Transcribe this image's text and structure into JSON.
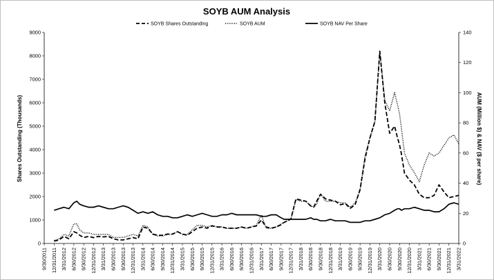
{
  "chart_data": {
    "type": "line",
    "title": "SOYB AUM Analysis",
    "ylabel": "Shares Outstanding (Thousands)",
    "y2label": "AUM (Million $) & NAV ($ per share)",
    "ylim": [
      0,
      9000
    ],
    "y2lim": [
      0,
      140
    ],
    "yticks": [
      0,
      1000,
      2000,
      3000,
      4000,
      5000,
      6000,
      7000,
      8000,
      9000
    ],
    "y2ticks": [
      0,
      20,
      40,
      60,
      80,
      100,
      120,
      140
    ],
    "xlim": [
      0,
      42
    ],
    "xtick_labels": [
      "9/30/2011",
      "12/31/2011",
      "3/31/2012",
      "6/30/2012",
      "9/30/2012",
      "12/31/2012",
      "3/31/2013",
      "6/30/2013",
      "9/30/2013",
      "12/31/2013",
      "3/31/2014",
      "6/30/2014",
      "9/30/2014",
      "12/31/2014",
      "3/31/2015",
      "6/30/2015",
      "9/30/2015",
      "12/31/2015",
      "3/31/2016",
      "6/30/2016",
      "9/30/2016",
      "12/31/2016",
      "3/31/2017",
      "6/30/2017",
      "9/30/2017",
      "12/31/2017",
      "3/31/2018",
      "6/30/2018",
      "9/30/2018",
      "12/31/2018",
      "3/31/2019",
      "6/30/2019",
      "9/30/2019",
      "12/31/2019",
      "3/31/2020",
      "6/30/2020",
      "9/30/2020",
      "12/31/2020",
      "3/31/2021",
      "6/30/2021",
      "9/30/2021",
      "12/31/2021",
      "3/31/2022"
    ],
    "legend_position": "top",
    "grid": false,
    "series": [
      {
        "name": "SOYB Shares Outstanding",
        "axis": "left",
        "style": "dashed",
        "x": [
          1,
          1.5,
          2,
          2.5,
          3,
          3.3,
          3.6,
          4,
          4.5,
          5,
          5.5,
          6,
          6.5,
          7,
          7.5,
          8,
          8.5,
          9,
          9.5,
          10,
          10.5,
          11,
          11.5,
          12,
          12.5,
          13,
          13.5,
          14,
          14.5,
          15,
          15.5,
          16,
          16.5,
          17,
          17.5,
          18,
          18.5,
          19,
          19.5,
          20,
          20.5,
          21,
          21.5,
          22,
          22.5,
          23,
          23.5,
          24,
          24.3,
          24.6,
          25,
          25.5,
          26,
          26.5,
          27,
          27.3,
          27.6,
          28,
          28.5,
          29,
          29.5,
          30,
          30.5,
          31,
          31.5,
          32,
          32.5,
          33,
          33.5,
          34,
          34.5,
          35,
          35.5,
          35.8,
          36,
          36.2,
          36.5,
          37,
          37.5,
          38,
          38.5,
          39,
          39.5,
          40,
          40.5,
          41,
          41.5,
          42
        ],
        "values": [
          100,
          150,
          300,
          200,
          500,
          450,
          350,
          250,
          300,
          250,
          300,
          280,
          300,
          200,
          150,
          150,
          200,
          250,
          200,
          700,
          650,
          400,
          350,
          350,
          400,
          400,
          500,
          400,
          350,
          500,
          650,
          700,
          650,
          750,
          700,
          700,
          650,
          650,
          650,
          700,
          650,
          700,
          750,
          1000,
          700,
          650,
          700,
          800,
          900,
          950,
          1050,
          1900,
          1850,
          1800,
          1600,
          1550,
          1800,
          2100,
          1900,
          1850,
          1800,
          1650,
          1700,
          1500,
          1650,
          2300,
          3600,
          4500,
          5200,
          8200,
          6000,
          4700,
          5000,
          4500,
          4200,
          3800,
          3000,
          2700,
          2500,
          2100,
          1950,
          1950,
          2050,
          2500,
          2200,
          1950,
          2000,
          2050
        ],
        "_note_values_shares_scale": "aligned to x"
      },
      {
        "name": "SOYB AUM",
        "axis": "right",
        "style": "dotted",
        "x": [
          1,
          1.5,
          2,
          2.5,
          3,
          3.3,
          3.6,
          4,
          4.5,
          5,
          5.5,
          6,
          6.5,
          7,
          7.5,
          8,
          8.5,
          9,
          9.5,
          10,
          10.5,
          11,
          11.5,
          12,
          12.5,
          13,
          13.5,
          14,
          14.5,
          15,
          15.5,
          16,
          16.5,
          17,
          17.5,
          18,
          18.5,
          19,
          19.5,
          20,
          20.5,
          21,
          21.5,
          22,
          22.5,
          23,
          23.5,
          24,
          24.3,
          24.6,
          25,
          25.5,
          26,
          26.5,
          27,
          27.3,
          27.6,
          28,
          28.5,
          29,
          29.5,
          30,
          30.5,
          31,
          31.5,
          32,
          32.5,
          33,
          33.5,
          34,
          34.5,
          35,
          35.5,
          35.8,
          36,
          36.2,
          36.5,
          37,
          37.5,
          38,
          38.5,
          39,
          39.5,
          40,
          40.5,
          41,
          41.5,
          42
        ],
        "values": [
          2,
          3,
          6,
          5,
          13,
          13,
          9,
          7,
          7,
          6,
          6,
          6,
          6,
          4,
          4,
          4,
          5,
          6,
          5,
          12,
          11,
          6,
          5,
          5,
          6,
          6,
          8,
          6,
          6,
          9,
          12,
          12,
          11,
          12,
          11,
          11,
          10,
          10,
          10,
          11,
          10,
          11,
          12,
          19,
          10,
          10,
          11,
          13,
          14,
          15,
          16,
          29,
          28,
          28,
          25,
          24,
          26,
          33,
          28,
          28,
          28,
          27,
          27,
          24,
          27,
          35,
          58,
          70,
          81,
          127,
          95,
          88,
          100,
          92,
          86,
          76,
          60,
          52,
          47,
          41,
          52,
          60,
          58,
          60,
          65,
          70,
          72,
          66
        ]
      },
      {
        "name": "SOYB NAV Per Share",
        "axis": "right",
        "style": "solid",
        "x": [
          1,
          1.5,
          2,
          2.5,
          3,
          3.3,
          3.6,
          4,
          4.5,
          5,
          5.5,
          6,
          6.5,
          7,
          7.5,
          8,
          8.5,
          9,
          9.5,
          10,
          10.5,
          11,
          11.5,
          12,
          12.5,
          13,
          13.5,
          14,
          14.5,
          15,
          15.5,
          16,
          16.5,
          17,
          17.5,
          18,
          18.5,
          19,
          19.5,
          20,
          20.5,
          21,
          21.5,
          22,
          22.5,
          23,
          23.5,
          24,
          24.3,
          24.6,
          25,
          25.5,
          26,
          26.5,
          27,
          27.3,
          27.6,
          28,
          28.5,
          29,
          29.5,
          30,
          30.5,
          31,
          31.5,
          32,
          32.5,
          33,
          33.5,
          34,
          34.5,
          35,
          35.5,
          35.8,
          36,
          36.2,
          36.5,
          37,
          37.5,
          38,
          38.5,
          39,
          39.5,
          40,
          40.5,
          41,
          41.5,
          42
        ],
        "values": [
          22,
          23,
          24,
          23,
          27,
          28,
          26,
          25,
          24,
          24,
          25,
          24,
          23,
          23,
          24,
          25,
          24,
          22,
          20,
          21,
          20,
          21,
          19,
          18,
          18,
          17,
          17,
          18,
          19,
          18,
          19,
          20,
          19,
          18,
          18,
          19,
          19,
          20,
          19,
          19,
          19,
          19,
          19,
          18,
          18,
          19,
          19,
          17,
          16,
          16,
          16,
          16,
          16,
          16,
          17,
          16,
          16,
          15,
          15,
          16,
          15,
          15,
          15,
          14,
          14,
          14,
          15,
          15,
          16,
          17,
          19,
          20,
          22,
          23,
          23,
          22,
          23,
          23,
          24,
          23,
          22,
          22,
          21,
          21,
          23,
          26,
          27,
          26
        ]
      }
    ]
  }
}
